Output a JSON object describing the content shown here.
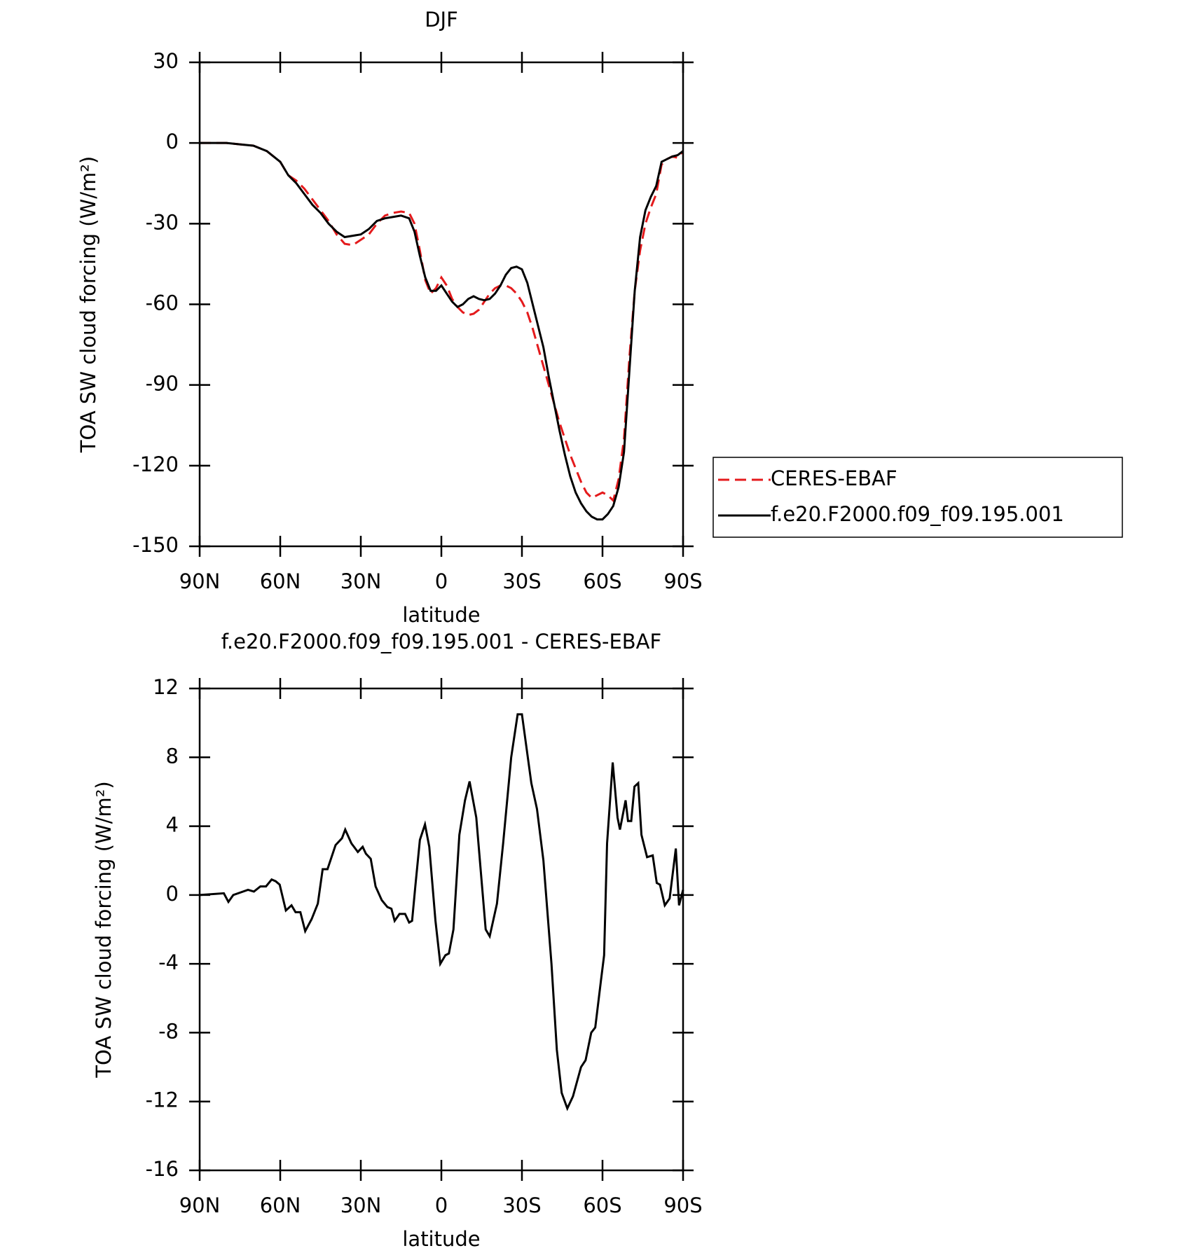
{
  "chart_data": [
    {
      "type": "line",
      "title": "DJF",
      "xlabel": "latitude",
      "ylabel": "TOA SW cloud forcing (W/m²)",
      "x": [
        90,
        85,
        80,
        75,
        70,
        65,
        60,
        57,
        54,
        51,
        48,
        45,
        42,
        39,
        36,
        33,
        30,
        27,
        24,
        21,
        18,
        15,
        12,
        10,
        8,
        6,
        4,
        2,
        0,
        -2,
        -4,
        -6,
        -8,
        -10,
        -12,
        -14,
        -16,
        -18,
        -20,
        -22,
        -24,
        -26,
        -28,
        -30,
        -32,
        -34,
        -36,
        -38,
        -40,
        -42,
        -44,
        -46,
        -48,
        -50,
        -52,
        -54,
        -56,
        -58,
        -60,
        -62,
        -64,
        -66,
        -68,
        -70,
        -72,
        -74,
        -76,
        -78,
        -80,
        -82,
        -84,
        -86,
        -88,
        -90
      ],
      "xlim": [
        90,
        -90
      ],
      "xticks": [
        {
          "value": 90,
          "label": "90N"
        },
        {
          "value": 60,
          "label": "60N"
        },
        {
          "value": 30,
          "label": "30N"
        },
        0,
        {
          "value": -30,
          "label": "30S"
        },
        {
          "value": -60,
          "label": "60S"
        },
        {
          "value": -90,
          "label": "90S"
        }
      ],
      "ylim": [
        -150,
        30
      ],
      "yticks": [
        -150,
        -120,
        -90,
        -60,
        -30,
        0,
        30
      ],
      "grid": false,
      "legend": "right",
      "series": [
        {
          "name": "CERES-EBAF",
          "color": "#e41a1c",
          "dashed": true,
          "values": [
            0,
            0,
            0,
            -0.5,
            -1,
            -3,
            -7,
            -12,
            -14,
            -17,
            -21,
            -25,
            -29,
            -34,
            -37.5,
            -38,
            -36,
            -34,
            -30,
            -27,
            -26,
            -25.5,
            -26,
            -30,
            -40,
            -51,
            -56,
            -54,
            -50,
            -53,
            -58,
            -61,
            -63,
            -64,
            -63.5,
            -62,
            -59,
            -56,
            -54,
            -53,
            -53,
            -54,
            -56,
            -59,
            -63,
            -69,
            -76,
            -83,
            -90,
            -97,
            -104,
            -110,
            -116,
            -121,
            -126,
            -130,
            -132,
            -131,
            -130,
            -131,
            -133,
            -125,
            -110,
            -80,
            -55,
            -40,
            -30,
            -24,
            -19,
            -8,
            -6,
            -5,
            -5.5,
            -3
          ]
        },
        {
          "name": "f.e20.F2000.f09_f09.195.001",
          "color": "#000000",
          "dashed": false,
          "values": [
            0,
            0,
            0,
            -0.5,
            -1,
            -3,
            -7,
            -12,
            -15,
            -19,
            -23,
            -26,
            -30,
            -33,
            -35,
            -34.5,
            -34,
            -32,
            -29,
            -28,
            -27.5,
            -27,
            -28,
            -33,
            -42,
            -50,
            -55,
            -55,
            -53,
            -56,
            -59,
            -61,
            -60,
            -58,
            -57,
            -58,
            -58.5,
            -58,
            -56,
            -53,
            -49,
            -46.5,
            -46,
            -47,
            -52,
            -60,
            -68,
            -76,
            -87,
            -97,
            -107,
            -116,
            -124,
            -130,
            -134,
            -137,
            -139,
            -140,
            -140,
            -138,
            -135,
            -128,
            -115,
            -85,
            -55,
            -35,
            -25,
            -20,
            -16,
            -7,
            -6,
            -5,
            -4.5,
            -3
          ]
        }
      ]
    },
    {
      "type": "line",
      "title": "f.e20.F2000.f09_f09.195.001 - CERES-EBAF",
      "xlabel": "latitude",
      "ylabel": "TOA SW cloud forcing (W/m²)",
      "x": [
        90,
        81,
        79.3,
        77.5,
        72,
        69.8,
        67.4,
        65.3,
        63.2,
        61.7,
        60.2,
        57.9,
        55.8,
        54.3,
        52.5,
        50.7,
        48.3,
        46,
        44.2,
        42.4,
        39.4,
        37,
        35.8,
        33.5,
        31.1,
        29.3,
        28.1,
        26.3,
        24.5,
        22.2,
        20.1,
        18.6,
        17.4,
        15.6,
        13.5,
        12,
        10.9,
        9.7,
        8,
        6.1,
        4.5,
        2.2,
        0.4,
        -1.5,
        -2.8,
        -4.5,
        -6.7,
        -8.8,
        -10.5,
        -13,
        -16.5,
        -18,
        -20.7,
        -23,
        -26,
        -28.4,
        -30,
        -33.5,
        -35.6,
        -38,
        -41,
        -43,
        -44.8,
        -46.9,
        -49,
        -52,
        -53.7,
        -55.8,
        -57.3,
        -59.4,
        -60.6,
        -61.7,
        -63.8,
        -65.6,
        -66.5,
        -68.6,
        -69.5,
        -70.7,
        -71.9,
        -73.3,
        -74.5,
        -76.6,
        -78.7,
        -80.2,
        -81.4,
        -83.2,
        -85,
        -87.3,
        -88.5,
        -90
      ],
      "xlim": [
        90,
        -90
      ],
      "xticks": [
        {
          "value": 90,
          "label": "90N"
        },
        {
          "value": 60,
          "label": "60N"
        },
        {
          "value": 30,
          "label": "30N"
        },
        0,
        {
          "value": -30,
          "label": "30S"
        },
        {
          "value": -60,
          "label": "60S"
        },
        {
          "value": -90,
          "label": "90S"
        }
      ],
      "ylim": [
        -16,
        12
      ],
      "yticks": [
        -16,
        -12,
        -8,
        -4,
        0,
        4,
        8,
        12
      ],
      "grid": false,
      "color": "#000000",
      "values": [
        0,
        0.1,
        -0.4,
        0,
        0.3,
        0.2,
        0.5,
        0.5,
        0.9,
        0.8,
        0.6,
        -0.9,
        -0.6,
        -1,
        -1,
        -2.1,
        -1.4,
        -0.5,
        1.5,
        1.5,
        2.9,
        3.3,
        3.8,
        3,
        2.5,
        2.8,
        2.4,
        2.1,
        0.5,
        -0.3,
        -0.7,
        -0.8,
        -1.5,
        -1.1,
        -1.1,
        -1.6,
        -1.5,
        0.5,
        3.2,
        4.1,
        2.8,
        -1.5,
        -4,
        -3.5,
        -3.4,
        -2,
        3.5,
        5.5,
        6.6,
        4.5,
        -2,
        -2.4,
        -0.5,
        3,
        8,
        10.5,
        10.5,
        6.5,
        5,
        2,
        -4,
        -9,
        -11.5,
        -12.4,
        -11.7,
        -10,
        -9.6,
        -8,
        -7.7,
        -5,
        -3.5,
        3,
        7.7,
        4.5,
        3.8,
        5.5,
        4.3,
        4.3,
        6.3,
        6.5,
        3.5,
        2.2,
        2.3,
        0.7,
        0.6,
        -0.6,
        -0.2,
        2.7,
        -0.6,
        0.3
      ]
    }
  ]
}
